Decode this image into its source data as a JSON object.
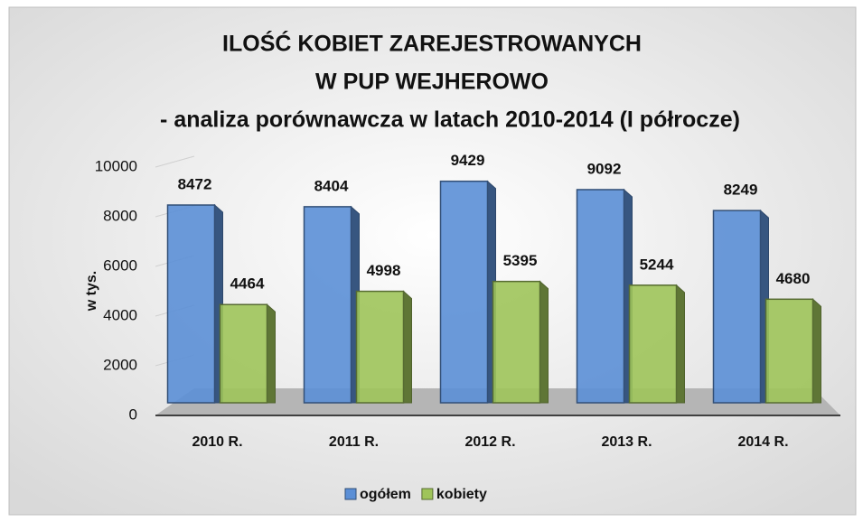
{
  "chart_data": {
    "type": "bar3d",
    "title": [
      "ILOŚĆ KOBIET ZAREJESTROWANYCH",
      "W PUP WEJHEROWO",
      "- analiza porównawcza w latach 2010-2014 (I półrocze)"
    ],
    "y_label": "w tys.",
    "categories": [
      "2010 R.",
      "2011 R.",
      "2012 R.",
      "2013 R.",
      "2014 R."
    ],
    "series": [
      {
        "name": "ogółem",
        "color": "#5b8fd6",
        "values": [
          8472,
          8404,
          9429,
          9092,
          8249
        ]
      },
      {
        "name": "kobiety",
        "color": "#9fc45a",
        "values": [
          4464,
          4998,
          5395,
          5244,
          4680
        ]
      }
    ],
    "ylim": [
      0,
      10000
    ],
    "yticks": [
      0,
      2000,
      4000,
      6000,
      8000,
      10000
    ],
    "grid": true,
    "legend": "bottom"
  }
}
